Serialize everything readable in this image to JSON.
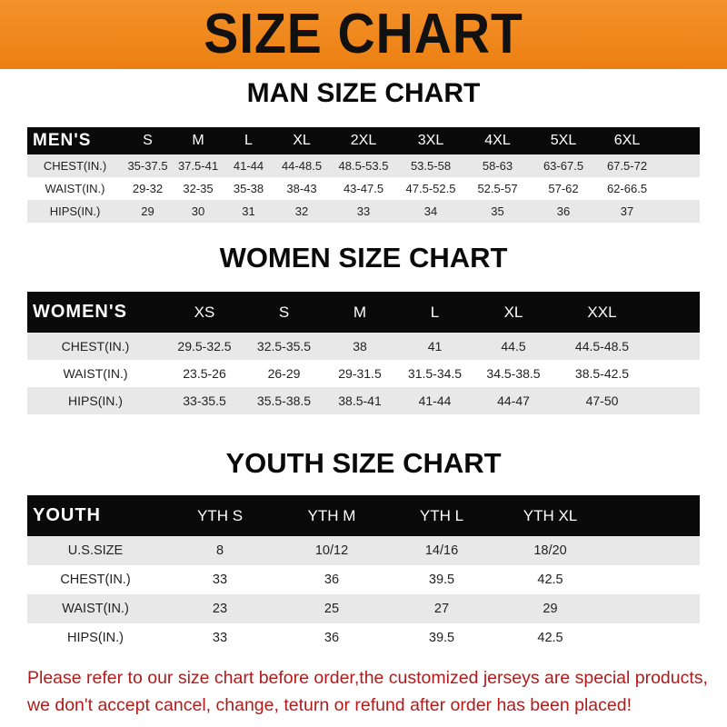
{
  "title": "SIZE CHART",
  "men": {
    "title": "MAN SIZE CHART",
    "header": [
      "MEN'S",
      "S",
      "M",
      "L",
      "XL",
      "2XL",
      "3XL",
      "4XL",
      "5XL",
      "6XL"
    ],
    "rows": [
      [
        "CHEST(IN.)",
        "35-37.5",
        "37.5-41",
        "41-44",
        "44-48.5",
        "48.5-53.5",
        "53.5-58",
        "58-63",
        "63-67.5",
        "67.5-72"
      ],
      [
        "WAIST(IN.)",
        "29-32",
        "32-35",
        "35-38",
        "38-43",
        "43-47.5",
        "47.5-52.5",
        "52.5-57",
        "57-62",
        "62-66.5"
      ],
      [
        "HIPS(IN.)",
        "29",
        "30",
        "31",
        "32",
        "33",
        "34",
        "35",
        "36",
        "37"
      ]
    ]
  },
  "women": {
    "title": "WOMEN SIZE CHART",
    "header": [
      "WOMEN'S",
      "XS",
      "S",
      "M",
      "L",
      "XL",
      "XXL"
    ],
    "rows": [
      [
        "CHEST(IN.)",
        "29.5-32.5",
        "32.5-35.5",
        "38",
        "41",
        "44.5",
        "44.5-48.5"
      ],
      [
        "WAIST(IN.)",
        "23.5-26",
        "26-29",
        "29-31.5",
        "31.5-34.5",
        "34.5-38.5",
        "38.5-42.5"
      ],
      [
        "HIPS(IN.)",
        "33-35.5",
        "35.5-38.5",
        "38.5-41",
        "41-44",
        "44-47",
        "47-50"
      ]
    ]
  },
  "youth": {
    "title": "YOUTH SIZE CHART",
    "header": [
      "YOUTH",
      "YTH S",
      "YTH M",
      "YTH L",
      "YTH XL"
    ],
    "rows": [
      [
        "U.S.SIZE",
        "8",
        "10/12",
        "14/16",
        "18/20"
      ],
      [
        "CHEST(IN.)",
        "33",
        "36",
        "39.5",
        "42.5"
      ],
      [
        "WAIST(IN.)",
        "23",
        "25",
        "27",
        "29"
      ],
      [
        "HIPS(IN.)",
        "33",
        "36",
        "39.5",
        "42.5"
      ]
    ]
  },
  "notice": {
    "line1": "Please refer to our size chart before order,the customized jerseys are special products,",
    "line2": "we don't accept cancel, change, teturn or refund after order has been placed!"
  },
  "colors": {
    "banner": "#ef8a1f",
    "header_bar": "#0a0a0a",
    "stripe": "#e8e8e8",
    "notice": "#b01c1c"
  }
}
